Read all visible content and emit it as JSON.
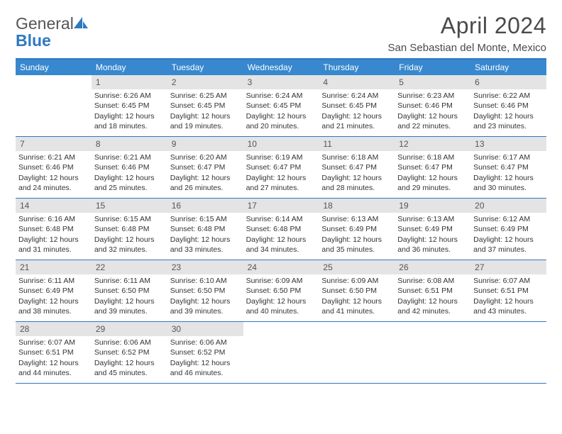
{
  "brand": {
    "name1": "General",
    "name2": "Blue"
  },
  "title": "April 2024",
  "location": "San Sebastian del Monte, Mexico",
  "colors": {
    "accent": "#3788ce",
    "rule": "#2f78c2",
    "daynum_bg": "#e4e4e4",
    "text": "#333333"
  },
  "weekdays": [
    "Sunday",
    "Monday",
    "Tuesday",
    "Wednesday",
    "Thursday",
    "Friday",
    "Saturday"
  ],
  "weeks": [
    [
      {
        "n": "",
        "sunrise": "",
        "sunset": "",
        "daylight": ""
      },
      {
        "n": "1",
        "sunrise": "Sunrise: 6:26 AM",
        "sunset": "Sunset: 6:45 PM",
        "daylight": "Daylight: 12 hours and 18 minutes."
      },
      {
        "n": "2",
        "sunrise": "Sunrise: 6:25 AM",
        "sunset": "Sunset: 6:45 PM",
        "daylight": "Daylight: 12 hours and 19 minutes."
      },
      {
        "n": "3",
        "sunrise": "Sunrise: 6:24 AM",
        "sunset": "Sunset: 6:45 PM",
        "daylight": "Daylight: 12 hours and 20 minutes."
      },
      {
        "n": "4",
        "sunrise": "Sunrise: 6:24 AM",
        "sunset": "Sunset: 6:45 PM",
        "daylight": "Daylight: 12 hours and 21 minutes."
      },
      {
        "n": "5",
        "sunrise": "Sunrise: 6:23 AM",
        "sunset": "Sunset: 6:46 PM",
        "daylight": "Daylight: 12 hours and 22 minutes."
      },
      {
        "n": "6",
        "sunrise": "Sunrise: 6:22 AM",
        "sunset": "Sunset: 6:46 PM",
        "daylight": "Daylight: 12 hours and 23 minutes."
      }
    ],
    [
      {
        "n": "7",
        "sunrise": "Sunrise: 6:21 AM",
        "sunset": "Sunset: 6:46 PM",
        "daylight": "Daylight: 12 hours and 24 minutes."
      },
      {
        "n": "8",
        "sunrise": "Sunrise: 6:21 AM",
        "sunset": "Sunset: 6:46 PM",
        "daylight": "Daylight: 12 hours and 25 minutes."
      },
      {
        "n": "9",
        "sunrise": "Sunrise: 6:20 AM",
        "sunset": "Sunset: 6:47 PM",
        "daylight": "Daylight: 12 hours and 26 minutes."
      },
      {
        "n": "10",
        "sunrise": "Sunrise: 6:19 AM",
        "sunset": "Sunset: 6:47 PM",
        "daylight": "Daylight: 12 hours and 27 minutes."
      },
      {
        "n": "11",
        "sunrise": "Sunrise: 6:18 AM",
        "sunset": "Sunset: 6:47 PM",
        "daylight": "Daylight: 12 hours and 28 minutes."
      },
      {
        "n": "12",
        "sunrise": "Sunrise: 6:18 AM",
        "sunset": "Sunset: 6:47 PM",
        "daylight": "Daylight: 12 hours and 29 minutes."
      },
      {
        "n": "13",
        "sunrise": "Sunrise: 6:17 AM",
        "sunset": "Sunset: 6:47 PM",
        "daylight": "Daylight: 12 hours and 30 minutes."
      }
    ],
    [
      {
        "n": "14",
        "sunrise": "Sunrise: 6:16 AM",
        "sunset": "Sunset: 6:48 PM",
        "daylight": "Daylight: 12 hours and 31 minutes."
      },
      {
        "n": "15",
        "sunrise": "Sunrise: 6:15 AM",
        "sunset": "Sunset: 6:48 PM",
        "daylight": "Daylight: 12 hours and 32 minutes."
      },
      {
        "n": "16",
        "sunrise": "Sunrise: 6:15 AM",
        "sunset": "Sunset: 6:48 PM",
        "daylight": "Daylight: 12 hours and 33 minutes."
      },
      {
        "n": "17",
        "sunrise": "Sunrise: 6:14 AM",
        "sunset": "Sunset: 6:48 PM",
        "daylight": "Daylight: 12 hours and 34 minutes."
      },
      {
        "n": "18",
        "sunrise": "Sunrise: 6:13 AM",
        "sunset": "Sunset: 6:49 PM",
        "daylight": "Daylight: 12 hours and 35 minutes."
      },
      {
        "n": "19",
        "sunrise": "Sunrise: 6:13 AM",
        "sunset": "Sunset: 6:49 PM",
        "daylight": "Daylight: 12 hours and 36 minutes."
      },
      {
        "n": "20",
        "sunrise": "Sunrise: 6:12 AM",
        "sunset": "Sunset: 6:49 PM",
        "daylight": "Daylight: 12 hours and 37 minutes."
      }
    ],
    [
      {
        "n": "21",
        "sunrise": "Sunrise: 6:11 AM",
        "sunset": "Sunset: 6:49 PM",
        "daylight": "Daylight: 12 hours and 38 minutes."
      },
      {
        "n": "22",
        "sunrise": "Sunrise: 6:11 AM",
        "sunset": "Sunset: 6:50 PM",
        "daylight": "Daylight: 12 hours and 39 minutes."
      },
      {
        "n": "23",
        "sunrise": "Sunrise: 6:10 AM",
        "sunset": "Sunset: 6:50 PM",
        "daylight": "Daylight: 12 hours and 39 minutes."
      },
      {
        "n": "24",
        "sunrise": "Sunrise: 6:09 AM",
        "sunset": "Sunset: 6:50 PM",
        "daylight": "Daylight: 12 hours and 40 minutes."
      },
      {
        "n": "25",
        "sunrise": "Sunrise: 6:09 AM",
        "sunset": "Sunset: 6:50 PM",
        "daylight": "Daylight: 12 hours and 41 minutes."
      },
      {
        "n": "26",
        "sunrise": "Sunrise: 6:08 AM",
        "sunset": "Sunset: 6:51 PM",
        "daylight": "Daylight: 12 hours and 42 minutes."
      },
      {
        "n": "27",
        "sunrise": "Sunrise: 6:07 AM",
        "sunset": "Sunset: 6:51 PM",
        "daylight": "Daylight: 12 hours and 43 minutes."
      }
    ],
    [
      {
        "n": "28",
        "sunrise": "Sunrise: 6:07 AM",
        "sunset": "Sunset: 6:51 PM",
        "daylight": "Daylight: 12 hours and 44 minutes."
      },
      {
        "n": "29",
        "sunrise": "Sunrise: 6:06 AM",
        "sunset": "Sunset: 6:52 PM",
        "daylight": "Daylight: 12 hours and 45 minutes."
      },
      {
        "n": "30",
        "sunrise": "Sunrise: 6:06 AM",
        "sunset": "Sunset: 6:52 PM",
        "daylight": "Daylight: 12 hours and 46 minutes."
      },
      {
        "n": "",
        "sunrise": "",
        "sunset": "",
        "daylight": ""
      },
      {
        "n": "",
        "sunrise": "",
        "sunset": "",
        "daylight": ""
      },
      {
        "n": "",
        "sunrise": "",
        "sunset": "",
        "daylight": ""
      },
      {
        "n": "",
        "sunrise": "",
        "sunset": "",
        "daylight": ""
      }
    ]
  ]
}
